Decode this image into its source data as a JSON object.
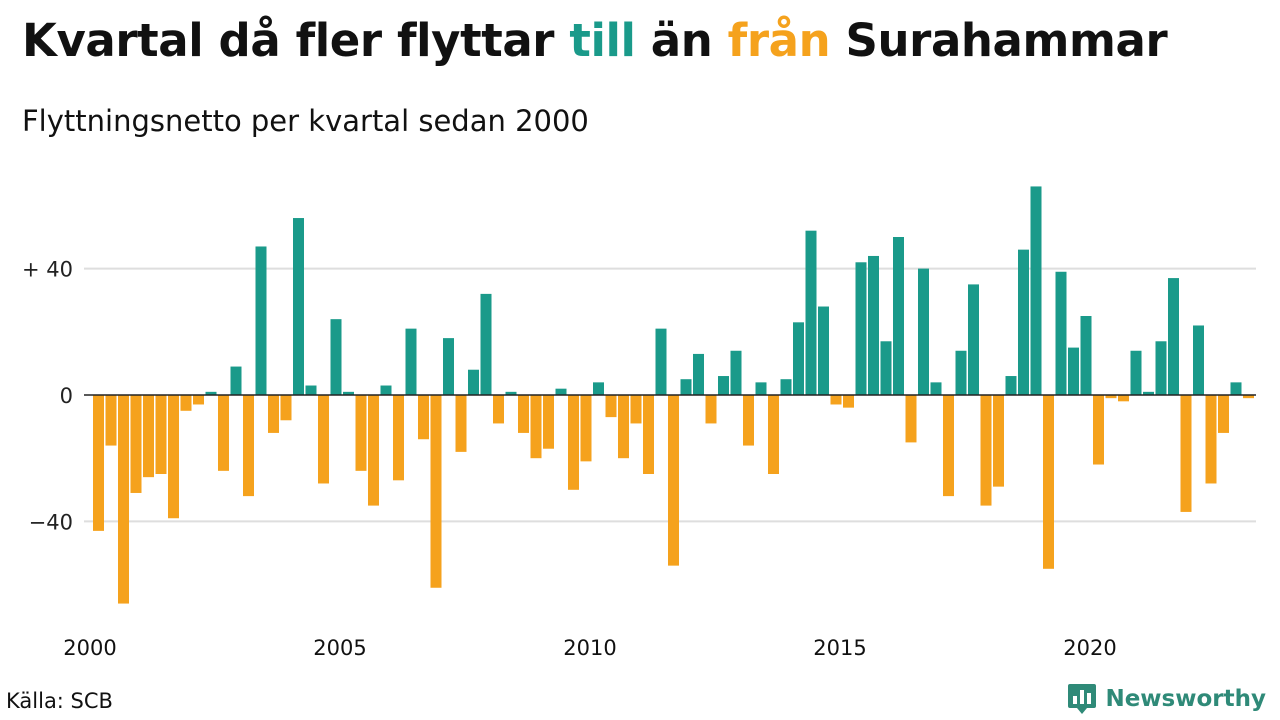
{
  "title": {
    "pre": "Kvartal då fler flyttar ",
    "in_word": "till",
    "mid": " än ",
    "out_word": "från",
    "post": " Surahammar"
  },
  "subtitle": "Flyttningsnetto per kvartal sedan 2000",
  "source": "Källa: SCB",
  "brand": {
    "name": "Newsworthy",
    "icon": "bar-chart-logo-icon"
  },
  "colors": {
    "positive": "#1a9a8a",
    "negative": "#f5a21d",
    "grid": "#dedede",
    "brand": "#2f8a78"
  },
  "chart_data": {
    "type": "bar",
    "title": "Kvartal då fler flyttar till än från Surahammar",
    "subtitle": "Flyttningsnetto per kvartal sedan 2000",
    "x_start": "2000 Q1",
    "x_ticks": [
      "2000",
      "2005",
      "2010",
      "2015",
      "2020"
    ],
    "y_ticks": [
      {
        "value": 40,
        "label": "+ 40"
      },
      {
        "value": 0,
        "label": "0"
      },
      {
        "value": -40,
        "label": "−40"
      }
    ],
    "ylim": [
      -68,
      68
    ],
    "grid": "horizontal",
    "values": [
      -43,
      -16,
      -66,
      -31,
      -26,
      -25,
      -39,
      -5,
      -3,
      1,
      -24,
      9,
      -32,
      47,
      -12,
      -8,
      56,
      3,
      -28,
      24,
      1,
      -24,
      -35,
      3,
      -27,
      21,
      -14,
      -61,
      18,
      -18,
      8,
      32,
      -9,
      1,
      -12,
      -20,
      -17,
      2,
      -30,
      -21,
      4,
      -7,
      -20,
      -9,
      -25,
      21,
      -54,
      5,
      13,
      -9,
      6,
      14,
      -16,
      4,
      -25,
      5,
      23,
      52,
      28,
      -3,
      -4,
      42,
      44,
      17,
      50,
      -15,
      40,
      4,
      -32,
      14,
      35,
      -35,
      -29,
      6,
      46,
      66,
      -55,
      39,
      15,
      25,
      -22,
      -1,
      -2,
      14,
      1,
      17,
      37,
      -37,
      22,
      -28,
      -12,
      4,
      -1
    ]
  }
}
